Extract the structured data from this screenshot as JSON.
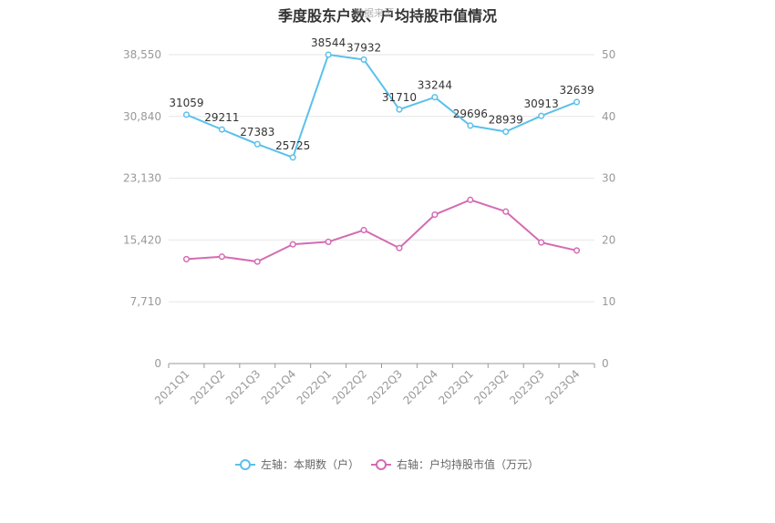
{
  "chart_data": {
    "type": "line",
    "title": "季度股东户数、户均持股市值情况",
    "watermark": "数据来源",
    "categories": [
      "2021Q1",
      "2021Q2",
      "2021Q3",
      "2021Q4",
      "2022Q1",
      "2022Q2",
      "2022Q3",
      "2022Q4",
      "2023Q1",
      "2023Q2",
      "2023Q3",
      "2023Q4"
    ],
    "y_left": {
      "min": 0,
      "max": 38550,
      "ticks": [
        "0",
        "7,710",
        "15,420",
        "23,130",
        "30,840",
        "38,550"
      ],
      "tick_values": [
        0,
        7710,
        15420,
        23130,
        30840,
        38550
      ]
    },
    "y_right": {
      "min": 0,
      "max": 50,
      "ticks": [
        "0",
        "10",
        "20",
        "30",
        "40",
        "50"
      ],
      "tick_values": [
        0,
        10,
        20,
        30,
        40,
        50
      ]
    },
    "series": [
      {
        "name": "左轴：本期数（户）",
        "axis": "left",
        "color": "#5bc0eb",
        "values": [
          31059,
          29211,
          27383,
          25725,
          38544,
          37932,
          31710,
          33244,
          29696,
          28939,
          30913,
          32639
        ],
        "labels": [
          "31059",
          "29211",
          "27383",
          "25725",
          "38544",
          "37932",
          "31710",
          "33244",
          "29696",
          "28939",
          "30913",
          "32639"
        ]
      },
      {
        "name": "右轴：户均持股市值（万元）",
        "axis": "right",
        "color": "#d46bb3",
        "values": [
          16.9,
          17.3,
          16.5,
          19.3,
          19.7,
          21.6,
          18.7,
          24.1,
          26.5,
          24.6,
          19.6,
          18.3
        ]
      }
    ],
    "grid": true,
    "legend_position": "bottom"
  }
}
